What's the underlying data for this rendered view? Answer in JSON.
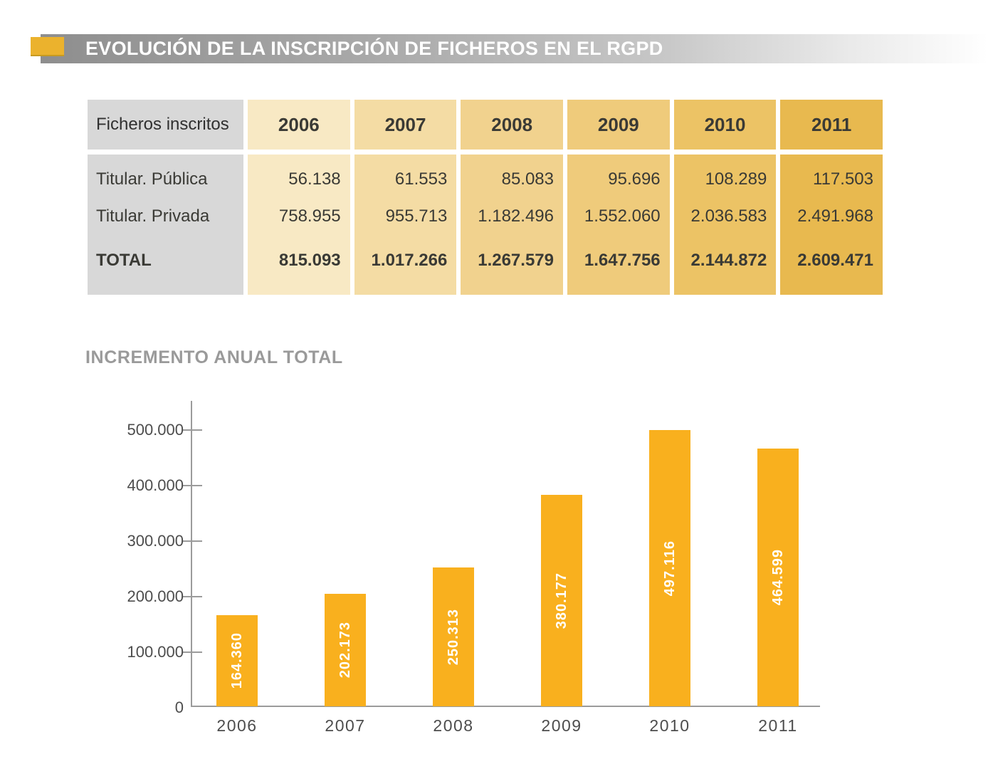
{
  "header": {
    "title": "EVOLUCIÓN DE LA INSCRIPCIÓN DE FICHEROS EN EL RGPD"
  },
  "table": {
    "corner_label": "Ficheros inscritos",
    "years": [
      "2006",
      "2007",
      "2008",
      "2009",
      "2010",
      "2011"
    ],
    "rows": [
      {
        "label": "Titular. Pública",
        "values": [
          "56.138",
          "61.553",
          "85.083",
          "95.696",
          "108.289",
          "117.503"
        ]
      },
      {
        "label": "Titular. Privada",
        "values": [
          "758.955",
          "955.713",
          "1.182.496",
          "1.552.060",
          "2.036.583",
          "2.491.968"
        ]
      },
      {
        "label": "TOTAL",
        "values": [
          "815.093",
          "1.017.266",
          "1.267.579",
          "1.647.756",
          "2.144.872",
          "2.609.471"
        ]
      }
    ],
    "column_colors": [
      "#F8E9C4",
      "#F4DCA4",
      "#F1D28E",
      "#EFCB7B",
      "#ECC365",
      "#E8B94F"
    ]
  },
  "chart": {
    "title": "INCREMENTO ANUAL TOTAL"
  },
  "chart_data": {
    "type": "bar",
    "title": "INCREMENTO ANUAL TOTAL",
    "categories": [
      "2006",
      "2007",
      "2008",
      "2009",
      "2010",
      "2011"
    ],
    "values": [
      164360,
      202173,
      250313,
      380177,
      497116,
      464599
    ],
    "bar_labels": [
      "164.360",
      "202.173",
      "250.313",
      "380.177",
      "497.116",
      "464.599"
    ],
    "xlabel": "",
    "ylabel": "",
    "ylim": [
      0,
      500000
    ],
    "ytick_values": [
      500000,
      400000,
      300000,
      200000,
      100000,
      0
    ],
    "ytick_labels": [
      "500.000",
      "400.000",
      "300.000",
      "200.000",
      "100.000",
      "0"
    ],
    "grid": false,
    "legend_position": "none",
    "bar_color": "#F9B01E"
  },
  "colors": {
    "accent_gold": "#EBB22D",
    "header_gray_start": "#8E8E8E",
    "bar_gold": "#F9B01E",
    "table_label_gray": "#D8D8D8"
  }
}
